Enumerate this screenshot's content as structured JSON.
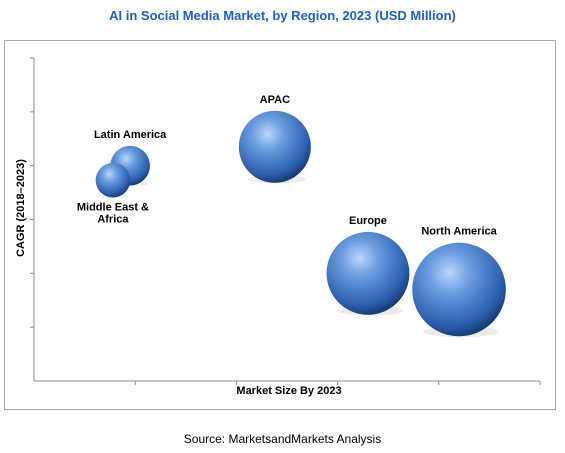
{
  "chart_data": {
    "type": "scatter",
    "title": "AI in Social Media Market, by Region, 2023 (USD Million)",
    "xlabel": "Market Size By 2023",
    "ylabel": "CAGR (2018–2023)",
    "xlim": [
      0,
      5
    ],
    "ylim": [
      0,
      6
    ],
    "grid": false,
    "points": [
      {
        "name": "Latin America",
        "x": 0.95,
        "y": 4.0,
        "size": 0.55,
        "label": [
          "Latin America"
        ],
        "label_pos": "above"
      },
      {
        "name": "Middle East & Africa",
        "x": 0.78,
        "y": 3.73,
        "size": 0.48,
        "label": [
          "Middle East &",
          "Africa"
        ],
        "label_pos": "below"
      },
      {
        "name": "APAC",
        "x": 2.38,
        "y": 4.35,
        "size": 1.0,
        "label": [
          "APAC"
        ],
        "label_pos": "above"
      },
      {
        "name": "Europe",
        "x": 3.3,
        "y": 2.0,
        "size": 1.15,
        "label": [
          "Europe"
        ],
        "label_pos": "above"
      },
      {
        "name": "North America",
        "x": 4.2,
        "y": 1.7,
        "size": 1.3,
        "label": [
          "North America"
        ],
        "label_pos": "above"
      }
    ]
  },
  "source": "Source: MarketsandMarkets Analysis",
  "colors": {
    "title": "#1f5fbf",
    "bubble_light": "#8fb8ee",
    "bubble_mid": "#3f78c8",
    "bubble_dark": "#0f2e63",
    "axis": "#8c8c8c"
  }
}
